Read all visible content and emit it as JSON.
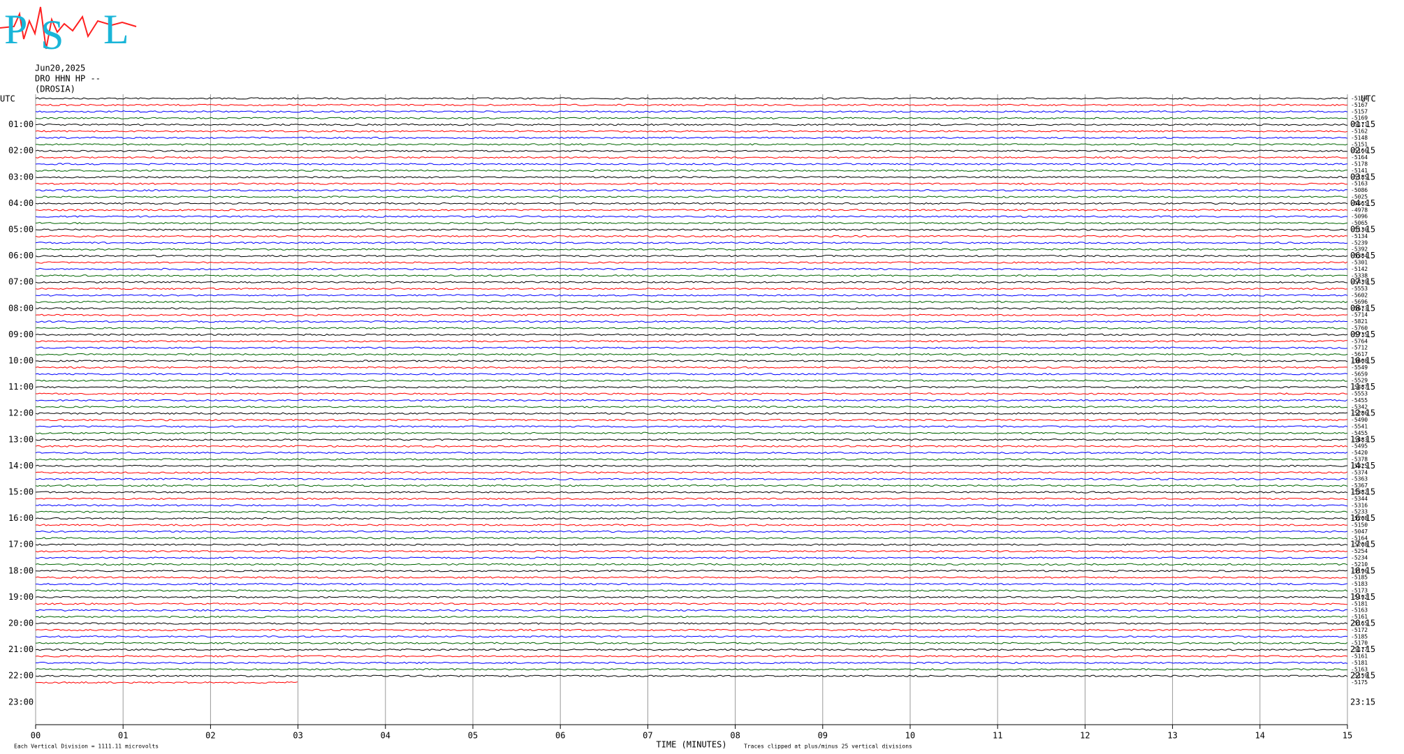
{
  "chart_data": {
    "type": "helicorder",
    "logo": [
      "P",
      "S",
      "L"
    ],
    "date": "Jun20,2025",
    "station": "DRO HHN HP --",
    "site": "(DROSIA)",
    "utc_left": "UTC",
    "utc_right": "UTC",
    "hours_left": [
      "01:00",
      "02:00",
      "03:00",
      "04:00",
      "05:00",
      "06:00",
      "07:00",
      "08:00",
      "09:00",
      "10:00",
      "11:00",
      "12:00",
      "13:00",
      "14:00",
      "15:00",
      "16:00",
      "17:00",
      "18:00",
      "19:00",
      "20:00",
      "21:00",
      "22:00",
      "23:00"
    ],
    "hours_right": [
      "01:15",
      "02:15",
      "03:15",
      "04:15",
      "05:15",
      "06:15",
      "07:15",
      "08:15",
      "09:15",
      "10:15",
      "11:15",
      "12:15",
      "13:15",
      "14:15",
      "15:15",
      "16:15",
      "17:15",
      "18:15",
      "19:15",
      "20:15",
      "21:15",
      "22:15",
      "23:15"
    ],
    "trace_labels": [
      "-5154",
      "-5167",
      "-5157",
      "-5169",
      "-5171",
      "-5162",
      "-5148",
      "-5151",
      "-5166",
      "-5164",
      "-5178",
      "-5141",
      "-5185",
      "-5163",
      "-5086",
      "-5025",
      "-5665",
      "-4978",
      "-5096",
      "-5065",
      "-5130",
      "-5134",
      "-5239",
      "-5392",
      "-5384",
      "-5301",
      "-5142",
      "-5338",
      "-5439",
      "-5553",
      "-5602",
      "-5696",
      "-5673",
      "-5714",
      "-5821",
      "-5760",
      "-5735",
      "-5764",
      "-5712",
      "-5617",
      "-5608",
      "-5549",
      "-5659",
      "-5529",
      "-5487",
      "-5553",
      "-5455",
      "-5342",
      "-5286",
      "-5490",
      "-5541",
      "-5455",
      "-5483",
      "-5495",
      "-5420",
      "-5378",
      "-5325",
      "-5374",
      "-5363",
      "-5367",
      "-5382",
      "-5344",
      "-5316",
      "-5233",
      "-5208",
      "-5150",
      "-5047",
      "-5164",
      "-5208",
      "-5254",
      "-5234",
      "-5210",
      "-5196",
      "-5185",
      "-5183",
      "-5173",
      "-5192",
      "-5181",
      "-5163",
      "-5161",
      "-5165",
      "-5172",
      "-5185",
      "-5170",
      "-5177",
      "-5161",
      "-5181",
      "-5163",
      "-5159",
      "-5175"
    ],
    "trace_colors": [
      "#000000",
      "#ff0000",
      "#0000ff",
      "#006400"
    ],
    "xlim": [
      0,
      15
    ],
    "xticks": [
      {
        "value": 0,
        "label": "00"
      },
      {
        "value": 1,
        "label": "01"
      },
      {
        "value": 2,
        "label": "02"
      },
      {
        "value": 3,
        "label": "03"
      },
      {
        "value": 4,
        "label": "04"
      },
      {
        "value": 5,
        "label": "05"
      },
      {
        "value": 6,
        "label": "06"
      },
      {
        "value": 7,
        "label": "07"
      },
      {
        "value": 8,
        "label": "08"
      },
      {
        "value": 9,
        "label": "09"
      },
      {
        "value": 10,
        "label": "10"
      },
      {
        "value": 11,
        "label": "11"
      },
      {
        "value": 12,
        "label": "12"
      },
      {
        "value": 13,
        "label": "13"
      },
      {
        "value": 14,
        "label": "14"
      },
      {
        "value": 15,
        "label": "15"
      }
    ],
    "x_title": "TIME (MINUTES)",
    "scale_note": "Each Vertical Division = 1111.11 microvolts",
    "clip_note": "Traces clipped at plus/minus 25 vertical divisions"
  }
}
